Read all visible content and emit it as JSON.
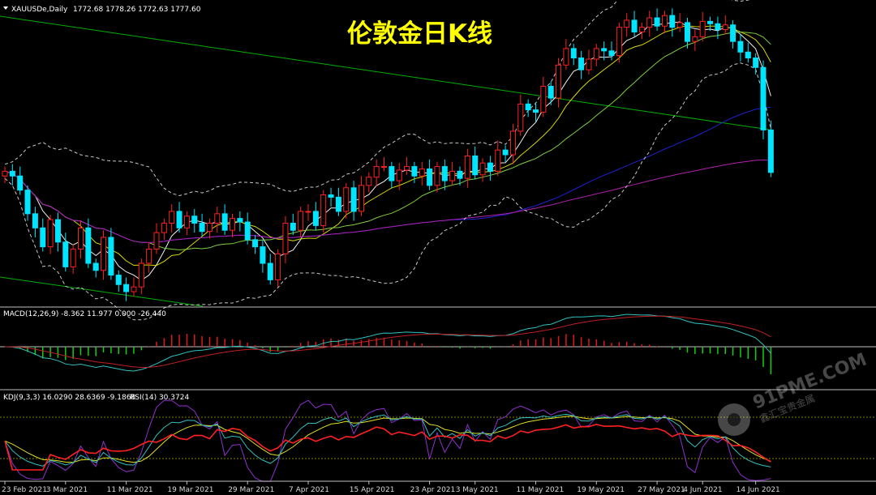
{
  "window": {
    "symbol_label": "XAUUSDe,Daily",
    "ohlc_label": "1772.68 1778.26 1772.63 1777.60",
    "title": "伦敦金日K线"
  },
  "watermark": {
    "brand": "91PME.COM",
    "tagline": "鑫汇宝贵金属"
  },
  "panels": {
    "macd_label": "MACD(12,26,9) -8.362 11.977 0.000 -26.440",
    "kdj_label": "KDJ(9,3,3) 16.0290 28.6369 -9.1868",
    "rsi_label": "RSI(14) 30.3724"
  },
  "x_ticks": [
    "23 Feb 2021",
    "3 Mar 2021",
    "11 Mar 2021",
    "19 Mar 2021",
    "29 Mar 2021",
    "7 Apr 2021",
    "15 Apr 2021",
    "23 Apr 2021",
    "3 May 2021",
    "11 May 2021",
    "19 May 2021",
    "27 May 2021",
    "4 Jun 2021",
    "14 Jun 2021"
  ],
  "colors": {
    "background": "#000000",
    "bull": "#000000",
    "bull_outline": "#ff2020",
    "bear": "#00e5ff",
    "ma_yellow": "#d8d800",
    "ma_white": "#f0f0f0",
    "ma_green": "#7fcf3f",
    "ma_blue": "#2020d0",
    "ma_magenta": "#b020b0",
    "trend": "#00b000",
    "bollinger": "#c8c8c8",
    "macd_up": "#e01818",
    "macd_down": "#10d010",
    "macd_line": "#30c0c0",
    "signal_line": "#c02020",
    "k_line": "#30c0c0",
    "d_line": "#e0e020",
    "j_line": "#9030d0",
    "rsi_line": "#ff2020",
    "level": "#808000"
  },
  "chart_data": {
    "type": "candlestick",
    "title": "伦敦金日K线",
    "x": [
      "23 Feb 2021",
      "3 Mar 2021",
      "11 Mar 2021",
      "19 Mar 2021",
      "29 Mar 2021",
      "7 Apr 2021",
      "15 Apr 2021",
      "23 Apr 2021",
      "3 May 2021",
      "11 May 2021",
      "19 May 2021",
      "27 May 2021",
      "4 Jun 2021",
      "14 Jun 2021"
    ],
    "closes": [
      1778,
      1774,
      1762,
      1742,
      1730,
      1714,
      1737,
      1718,
      1697,
      1712,
      1730,
      1700,
      1694,
      1722,
      1690,
      1682,
      1676,
      1680,
      1700,
      1712,
      1726,
      1734,
      1744,
      1730,
      1740,
      1734,
      1727,
      1734,
      1742,
      1728,
      1738,
      1735,
      1720,
      1714,
      1700,
      1686,
      1708,
      1734,
      1728,
      1744,
      1744,
      1732,
      1758,
      1756,
      1744,
      1764,
      1744,
      1766,
      1773,
      1782,
      1782,
      1770,
      1779,
      1782,
      1774,
      1780,
      1766,
      1782,
      1770,
      1778,
      1772,
      1791,
      1775,
      1785,
      1778,
      1796,
      1792,
      1812,
      1835,
      1830,
      1828,
      1850,
      1840,
      1868,
      1882,
      1874,
      1864,
      1873,
      1882,
      1880,
      1876,
      1900,
      1906,
      1896,
      1900,
      1908,
      1901,
      1910,
      1900,
      1904,
      1888,
      1892,
      1905,
      1903,
      1898,
      1902,
      1888,
      1879,
      1874,
      1866,
      1813,
      1777
    ],
    "ylim": [
      1665,
      1919
    ],
    "macd": {
      "macd": -8.362,
      "signal": 11.977,
      "histogram": -26.44
    },
    "kdj": {
      "K": 16.029,
      "D": 28.6369,
      "J": -9.1868
    },
    "rsi": {
      "value": 30.3724,
      "levels": [
        70,
        30
      ]
    }
  }
}
